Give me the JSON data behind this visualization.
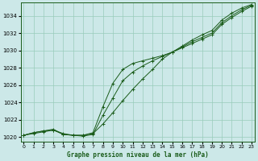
{
  "xlabel": "Graphe pression niveau de la mer (hPa)",
  "x_ticks": [
    0,
    1,
    2,
    3,
    4,
    5,
    6,
    7,
    8,
    9,
    10,
    11,
    12,
    13,
    14,
    15,
    16,
    17,
    18,
    19,
    20,
    21,
    22,
    23
  ],
  "ylim": [
    1019.5,
    1035.5
  ],
  "xlim": [
    -0.3,
    23.3
  ],
  "yticks": [
    1020,
    1022,
    1024,
    1026,
    1028,
    1030,
    1032,
    1034
  ],
  "bg_color": "#cce8e8",
  "grid_color": "#99ccbb",
  "line_color": "#1a5c1a",
  "line1_y": [
    1020.2,
    1020.5,
    1020.7,
    1020.8,
    1020.3,
    1020.2,
    1020.2,
    1020.4,
    1021.5,
    1022.8,
    1024.2,
    1025.5,
    1026.7,
    1027.8,
    1029.0,
    1029.8,
    1030.5,
    1031.2,
    1031.8,
    1032.3,
    1033.5,
    1034.3,
    1034.9,
    1035.3
  ],
  "line2_y": [
    1020.2,
    1020.5,
    1020.7,
    1020.9,
    1020.3,
    1020.2,
    1020.1,
    1020.3,
    1022.5,
    1024.5,
    1026.5,
    1027.5,
    1028.2,
    1028.8,
    1029.3,
    1029.8,
    1030.4,
    1031.0,
    1031.5,
    1032.0,
    1033.2,
    1034.0,
    1034.7,
    1035.2
  ],
  "line3_y": [
    1020.2,
    1020.4,
    1020.6,
    1020.8,
    1020.4,
    1020.2,
    1020.2,
    1020.5,
    1023.5,
    1026.2,
    1027.8,
    1028.5,
    1028.8,
    1029.1,
    1029.4,
    1029.8,
    1030.3,
    1030.8,
    1031.3,
    1031.8,
    1033.0,
    1033.8,
    1034.5,
    1035.1
  ]
}
